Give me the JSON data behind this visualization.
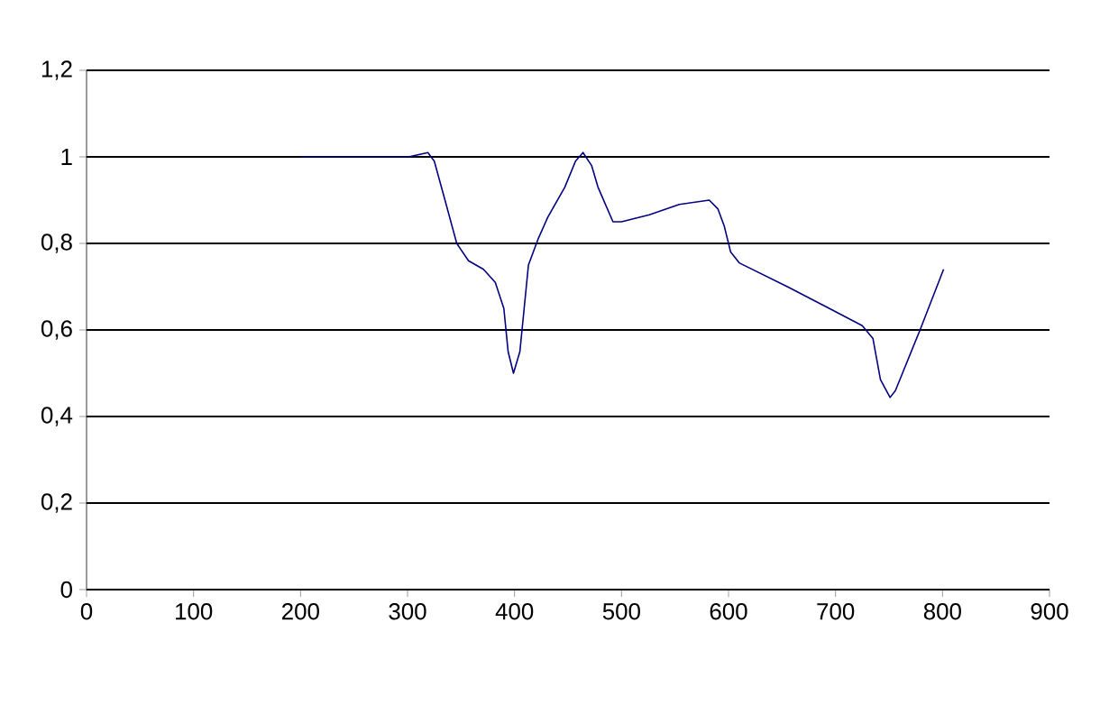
{
  "chart_data": {
    "type": "line",
    "x": [
      200,
      301,
      319,
      325,
      335,
      346,
      357,
      371,
      382,
      390,
      394,
      399,
      405,
      413,
      422,
      431,
      447,
      457,
      464,
      472,
      478,
      492,
      500,
      526,
      554,
      582,
      590,
      596,
      602,
      610,
      655,
      694,
      725,
      735,
      742,
      751,
      756,
      779,
      801
    ],
    "values": [
      1.0,
      1.0,
      1.01,
      0.99,
      0.9,
      0.8,
      0.76,
      0.74,
      0.71,
      0.65,
      0.55,
      0.5,
      0.55,
      0.75,
      0.81,
      0.86,
      0.93,
      0.99,
      1.01,
      0.98,
      0.93,
      0.85,
      0.85,
      0.866,
      0.89,
      0.9,
      0.88,
      0.84,
      0.78,
      0.755,
      0.7,
      0.65,
      0.61,
      0.58,
      0.485,
      0.444,
      0.46,
      0.6,
      0.74
    ],
    "color": "#000080",
    "xlim": [
      0,
      900
    ],
    "ylim": [
      0,
      1.2
    ],
    "xticks": [
      0,
      100,
      200,
      300,
      400,
      500,
      600,
      700,
      800,
      900
    ],
    "yticks": [
      0,
      {
        "value": 0.2,
        "label": "0,2"
      },
      {
        "value": 0.4,
        "label": "0,4"
      },
      {
        "value": 0.6,
        "label": "0,6"
      },
      {
        "value": 0.8,
        "label": "0,8"
      },
      1,
      {
        "value": 1.2,
        "label": "1,2"
      }
    ],
    "grid": "y",
    "marker": "none",
    "line_style": "solid"
  }
}
